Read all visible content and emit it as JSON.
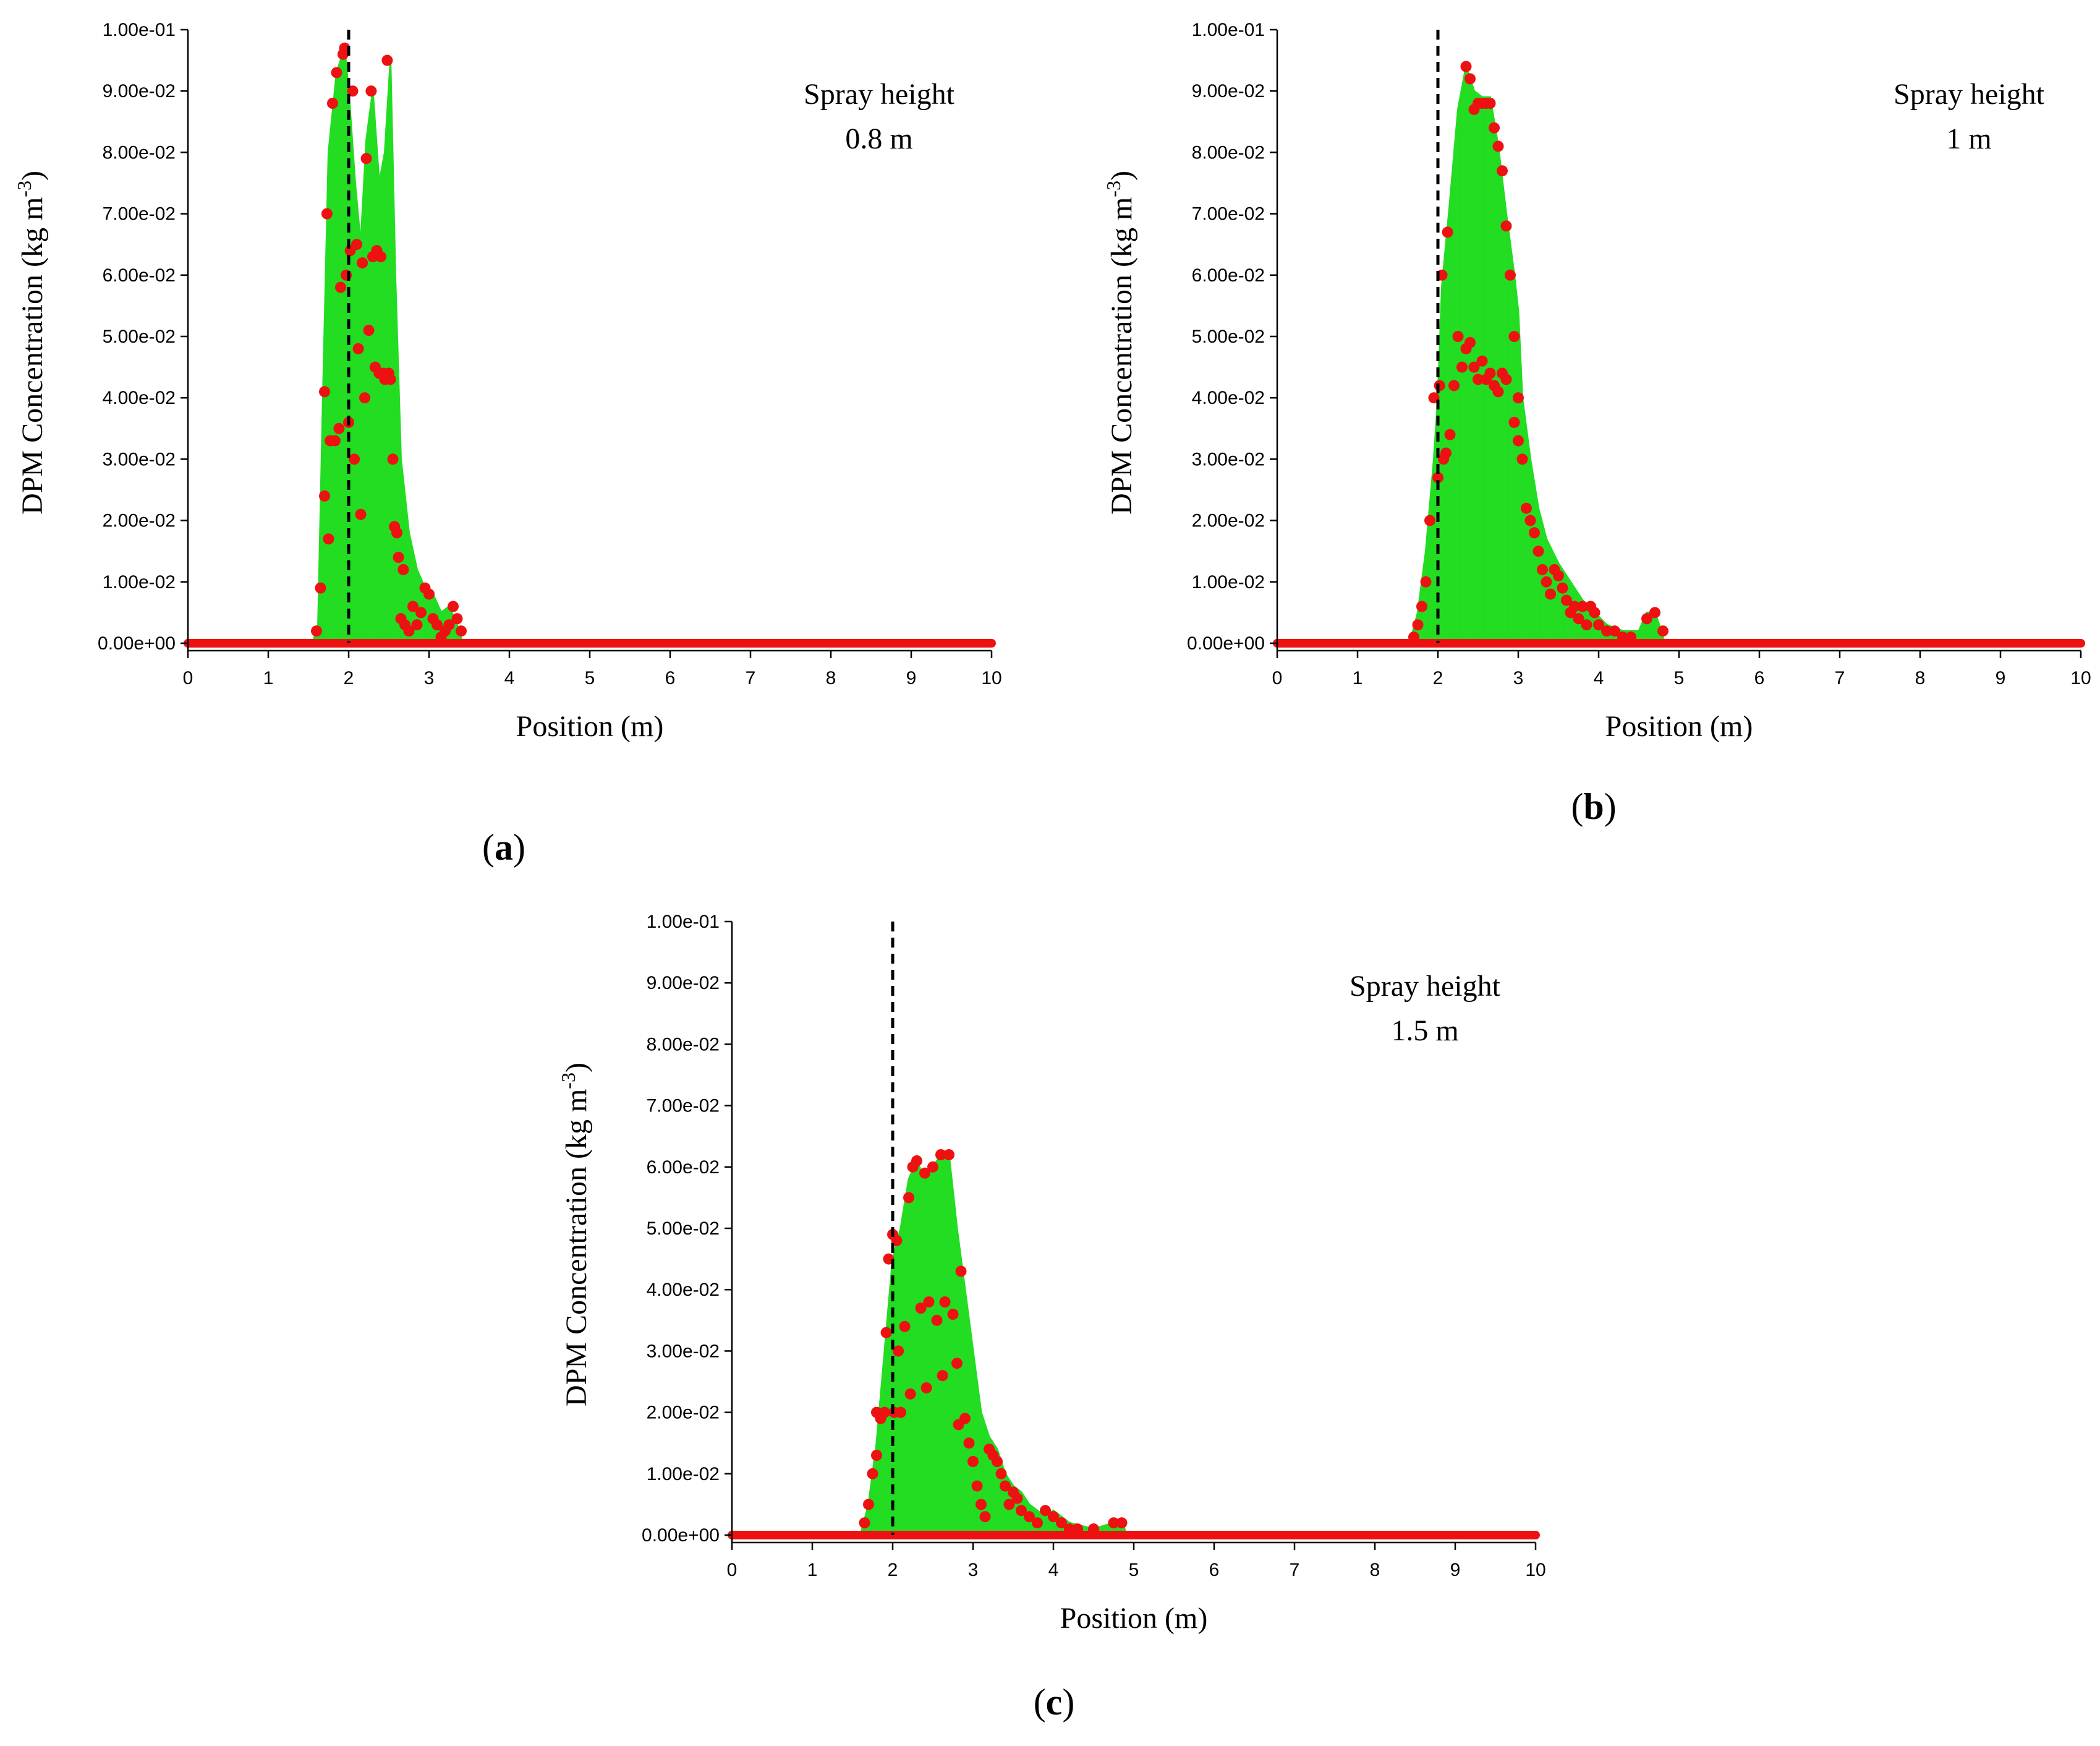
{
  "colors": {
    "fill": "#22dd22",
    "fill_light": "#a8f0a8",
    "point": "#ee1111",
    "axis": "#000000",
    "ref_line": "#000000"
  },
  "chart_data": [
    {
      "type": "area",
      "panel_label": "a",
      "xlabel": "Position (m)",
      "ylabel": "DPM Concentration (kg m",
      "ylabel_sup": "-3",
      "ylabel_end": ")",
      "annotation": [
        "Spray height",
        "0.8 m"
      ],
      "xlim": [
        0,
        10
      ],
      "ylim": [
        0,
        0.1
      ],
      "x_ticks": [
        "0",
        "1",
        "2",
        "3",
        "4",
        "5",
        "6",
        "7",
        "8",
        "9",
        "10"
      ],
      "y_ticks": [
        "0.00e+00",
        "1.00e-02",
        "2.00e-02",
        "3.00e-02",
        "4.00e-02",
        "5.00e-02",
        "6.00e-02",
        "7.00e-02",
        "8.00e-02",
        "9.00e-02",
        "1.00e-01"
      ],
      "reference_line_x": 2.0,
      "envelope": [
        [
          1.55,
          0
        ],
        [
          1.62,
          0.003
        ],
        [
          1.68,
          0.04
        ],
        [
          1.75,
          0.08
        ],
        [
          1.85,
          0.093
        ],
        [
          1.95,
          0.097
        ],
        [
          2.0,
          0.09
        ],
        [
          2.08,
          0.075
        ],
        [
          2.15,
          0.065
        ],
        [
          2.22,
          0.082
        ],
        [
          2.3,
          0.09
        ],
        [
          2.38,
          0.075
        ],
        [
          2.45,
          0.08
        ],
        [
          2.52,
          0.095
        ],
        [
          2.58,
          0.06
        ],
        [
          2.65,
          0.03
        ],
        [
          2.75,
          0.018
        ],
        [
          2.85,
          0.012
        ],
        [
          2.95,
          0.009
        ],
        [
          3.05,
          0.008
        ],
        [
          3.15,
          0.005
        ],
        [
          3.25,
          0.006
        ],
        [
          3.35,
          0.003
        ],
        [
          3.42,
          0
        ]
      ],
      "points": [
        [
          1.6,
          0.002
        ],
        [
          1.65,
          0.009
        ],
        [
          1.7,
          0.024
        ],
        [
          1.7,
          0.041
        ],
        [
          1.73,
          0.07
        ],
        [
          1.75,
          0.017
        ],
        [
          1.77,
          0.033
        ],
        [
          1.8,
          0.088
        ],
        [
          1.83,
          0.033
        ],
        [
          1.85,
          0.093
        ],
        [
          1.88,
          0.035
        ],
        [
          1.9,
          0.058
        ],
        [
          1.93,
          0.096
        ],
        [
          1.95,
          0.097
        ],
        [
          1.97,
          0.06
        ],
        [
          2.0,
          0.036
        ],
        [
          2.02,
          0.064
        ],
        [
          2.05,
          0.09
        ],
        [
          2.07,
          0.03
        ],
        [
          2.1,
          0.065
        ],
        [
          2.12,
          0.048
        ],
        [
          2.15,
          0.021
        ],
        [
          2.17,
          0.062
        ],
        [
          2.2,
          0.04
        ],
        [
          2.22,
          0.079
        ],
        [
          2.25,
          0.051
        ],
        [
          2.28,
          0.09
        ],
        [
          2.3,
          0.063
        ],
        [
          2.33,
          0.045
        ],
        [
          2.35,
          0.064
        ],
        [
          2.38,
          0.044
        ],
        [
          2.4,
          0.063
        ],
        [
          2.43,
          0.044
        ],
        [
          2.45,
          0.043
        ],
        [
          2.48,
          0.095
        ],
        [
          2.5,
          0.044
        ],
        [
          2.52,
          0.043
        ],
        [
          2.55,
          0.03
        ],
        [
          2.57,
          0.019
        ],
        [
          2.6,
          0.018
        ],
        [
          2.62,
          0.014
        ],
        [
          2.65,
          0.004
        ],
        [
          2.68,
          0.012
        ],
        [
          2.7,
          0.003
        ],
        [
          2.75,
          0.002
        ],
        [
          2.8,
          0.006
        ],
        [
          2.85,
          0.003
        ],
        [
          2.9,
          0.005
        ],
        [
          2.95,
          0.009
        ],
        [
          3.0,
          0.008
        ],
        [
          3.05,
          0.004
        ],
        [
          3.1,
          0.003
        ],
        [
          3.15,
          0.001
        ],
        [
          3.2,
          0.002
        ],
        [
          3.25,
          0.003
        ],
        [
          3.3,
          0.006
        ],
        [
          3.35,
          0.004
        ],
        [
          3.4,
          0.002
        ]
      ]
    },
    {
      "type": "area",
      "panel_label": "b",
      "xlabel": "Position (m)",
      "ylabel": "DPM Concentration (kg m",
      "ylabel_sup": "-3",
      "ylabel_end": ")",
      "annotation": [
        "Spray height",
        "1 m"
      ],
      "xlim": [
        0,
        10
      ],
      "ylim": [
        0,
        0.1
      ],
      "x_ticks": [
        "0",
        "1",
        "2",
        "3",
        "4",
        "5",
        "6",
        "7",
        "8",
        "9",
        "10"
      ],
      "y_ticks": [
        "0.00e+00",
        "1.00e-02",
        "2.00e-02",
        "3.00e-02",
        "4.00e-02",
        "5.00e-02",
        "6.00e-02",
        "7.00e-02",
        "8.00e-02",
        "9.00e-02",
        "1.00e-01"
      ],
      "reference_line_x": 2.0,
      "envelope": [
        [
          1.65,
          0
        ],
        [
          1.75,
          0.005
        ],
        [
          1.85,
          0.015
        ],
        [
          1.95,
          0.03
        ],
        [
          2.0,
          0.04
        ],
        [
          2.05,
          0.058
        ],
        [
          2.15,
          0.072
        ],
        [
          2.25,
          0.087
        ],
        [
          2.35,
          0.094
        ],
        [
          2.45,
          0.09
        ],
        [
          2.55,
          0.089
        ],
        [
          2.65,
          0.089
        ],
        [
          2.75,
          0.081
        ],
        [
          2.85,
          0.07
        ],
        [
          2.95,
          0.06
        ],
        [
          3.0,
          0.054
        ],
        [
          3.05,
          0.04
        ],
        [
          3.15,
          0.03
        ],
        [
          3.25,
          0.022
        ],
        [
          3.35,
          0.017
        ],
        [
          3.5,
          0.013
        ],
        [
          3.65,
          0.01
        ],
        [
          3.8,
          0.007
        ],
        [
          3.95,
          0.005
        ],
        [
          4.1,
          0.003
        ],
        [
          4.3,
          0.002
        ],
        [
          4.5,
          0.002
        ],
        [
          4.6,
          0.005
        ],
        [
          4.7,
          0.005
        ],
        [
          4.78,
          0.002
        ],
        [
          4.82,
          0
        ]
      ],
      "points": [
        [
          1.7,
          0.001
        ],
        [
          1.75,
          0.003
        ],
        [
          1.8,
          0.006
        ],
        [
          1.85,
          0.01
        ],
        [
          1.9,
          0.02
        ],
        [
          1.95,
          0.04
        ],
        [
          2.0,
          0.027
        ],
        [
          2.02,
          0.042
        ],
        [
          2.05,
          0.06
        ],
        [
          2.07,
          0.03
        ],
        [
          2.1,
          0.031
        ],
        [
          2.12,
          0.067
        ],
        [
          2.15,
          0.034
        ],
        [
          2.2,
          0.042
        ],
        [
          2.25,
          0.05
        ],
        [
          2.3,
          0.045
        ],
        [
          2.35,
          0.094
        ],
        [
          2.4,
          0.092
        ],
        [
          2.45,
          0.087
        ],
        [
          2.5,
          0.088
        ],
        [
          2.55,
          0.088
        ],
        [
          2.6,
          0.088
        ],
        [
          2.65,
          0.088
        ],
        [
          2.7,
          0.084
        ],
        [
          2.75,
          0.081
        ],
        [
          2.8,
          0.077
        ],
        [
          2.85,
          0.068
        ],
        [
          2.9,
          0.06
        ],
        [
          2.95,
          0.05
        ],
        [
          3.0,
          0.04
        ],
        [
          2.35,
          0.048
        ],
        [
          2.4,
          0.049
        ],
        [
          2.45,
          0.045
        ],
        [
          2.5,
          0.043
        ],
        [
          2.55,
          0.046
        ],
        [
          2.6,
          0.043
        ],
        [
          2.65,
          0.044
        ],
        [
          2.7,
          0.042
        ],
        [
          2.75,
          0.041
        ],
        [
          2.8,
          0.044
        ],
        [
          2.85,
          0.043
        ],
        [
          2.95,
          0.036
        ],
        [
          3.0,
          0.033
        ],
        [
          3.05,
          0.03
        ],
        [
          3.1,
          0.022
        ],
        [
          3.15,
          0.02
        ],
        [
          3.2,
          0.018
        ],
        [
          3.25,
          0.015
        ],
        [
          3.3,
          0.012
        ],
        [
          3.35,
          0.01
        ],
        [
          3.4,
          0.008
        ],
        [
          3.45,
          0.012
        ],
        [
          3.5,
          0.011
        ],
        [
          3.55,
          0.009
        ],
        [
          3.6,
          0.007
        ],
        [
          3.65,
          0.005
        ],
        [
          3.7,
          0.006
        ],
        [
          3.75,
          0.004
        ],
        [
          3.8,
          0.006
        ],
        [
          3.85,
          0.003
        ],
        [
          3.9,
          0.006
        ],
        [
          3.95,
          0.005
        ],
        [
          4.0,
          0.003
        ],
        [
          4.1,
          0.002
        ],
        [
          4.2,
          0.002
        ],
        [
          4.3,
          0.001
        ],
        [
          4.4,
          0.001
        ],
        [
          4.6,
          0.004
        ],
        [
          4.7,
          0.005
        ],
        [
          4.8,
          0.002
        ]
      ]
    },
    {
      "type": "area",
      "panel_label": "c",
      "xlabel": "Position (m)",
      "ylabel": "DPM Concentration (kg m",
      "ylabel_sup": "-3",
      "ylabel_end": ")",
      "annotation": [
        "Spray height",
        "1.5 m"
      ],
      "xlim": [
        0,
        10
      ],
      "ylim": [
        0,
        0.1
      ],
      "x_ticks": [
        "0",
        "1",
        "2",
        "3",
        "4",
        "5",
        "6",
        "7",
        "8",
        "9",
        "10"
      ],
      "y_ticks": [
        "0.00e+00",
        "1.00e-02",
        "2.00e-02",
        "3.00e-02",
        "4.00e-02",
        "5.00e-02",
        "6.00e-02",
        "7.00e-02",
        "8.00e-02",
        "9.00e-02",
        "1.00e-01"
      ],
      "reference_line_x": 2.0,
      "envelope": [
        [
          1.6,
          0
        ],
        [
          1.7,
          0.005
        ],
        [
          1.8,
          0.015
        ],
        [
          1.9,
          0.03
        ],
        [
          2.0,
          0.045
        ],
        [
          2.1,
          0.05
        ],
        [
          2.2,
          0.058
        ],
        [
          2.3,
          0.061
        ],
        [
          2.4,
          0.058
        ],
        [
          2.5,
          0.06
        ],
        [
          2.6,
          0.062
        ],
        [
          2.7,
          0.062
        ],
        [
          2.8,
          0.05
        ],
        [
          2.9,
          0.04
        ],
        [
          3.0,
          0.03
        ],
        [
          3.1,
          0.02
        ],
        [
          3.2,
          0.016
        ],
        [
          3.3,
          0.014
        ],
        [
          3.4,
          0.01
        ],
        [
          3.5,
          0.008
        ],
        [
          3.6,
          0.007
        ],
        [
          3.7,
          0.005
        ],
        [
          3.8,
          0.004
        ],
        [
          3.9,
          0.003
        ],
        [
          4.0,
          0.004
        ],
        [
          4.2,
          0.002
        ],
        [
          4.5,
          0.001
        ],
        [
          4.75,
          0.002
        ],
        [
          4.85,
          0.002
        ],
        [
          4.92,
          0
        ]
      ],
      "points": [
        [
          1.65,
          0.002
        ],
        [
          1.7,
          0.005
        ],
        [
          1.75,
          0.01
        ],
        [
          1.8,
          0.013
        ],
        [
          1.8,
          0.02
        ],
        [
          1.85,
          0.019
        ],
        [
          1.9,
          0.02
        ],
        [
          1.92,
          0.033
        ],
        [
          1.95,
          0.045
        ],
        [
          2.0,
          0.049
        ],
        [
          2.02,
          0.02
        ],
        [
          2.05,
          0.048
        ],
        [
          2.07,
          0.03
        ],
        [
          2.1,
          0.02
        ],
        [
          2.15,
          0.034
        ],
        [
          2.2,
          0.055
        ],
        [
          2.22,
          0.023
        ],
        [
          2.25,
          0.06
        ],
        [
          2.3,
          0.061
        ],
        [
          2.35,
          0.037
        ],
        [
          2.4,
          0.059
        ],
        [
          2.42,
          0.024
        ],
        [
          2.45,
          0.038
        ],
        [
          2.5,
          0.06
        ],
        [
          2.55,
          0.035
        ],
        [
          2.6,
          0.062
        ],
        [
          2.62,
          0.026
        ],
        [
          2.65,
          0.038
        ],
        [
          2.7,
          0.062
        ],
        [
          2.75,
          0.036
        ],
        [
          2.8,
          0.028
        ],
        [
          2.82,
          0.018
        ],
        [
          2.85,
          0.043
        ],
        [
          2.9,
          0.019
        ],
        [
          2.95,
          0.015
        ],
        [
          3.0,
          0.012
        ],
        [
          3.05,
          0.008
        ],
        [
          3.1,
          0.005
        ],
        [
          3.15,
          0.003
        ],
        [
          3.2,
          0.014
        ],
        [
          3.25,
          0.013
        ],
        [
          3.3,
          0.012
        ],
        [
          3.35,
          0.01
        ],
        [
          3.4,
          0.008
        ],
        [
          3.45,
          0.005
        ],
        [
          3.5,
          0.007
        ],
        [
          3.55,
          0.006
        ],
        [
          3.6,
          0.004
        ],
        [
          3.7,
          0.003
        ],
        [
          3.8,
          0.002
        ],
        [
          3.9,
          0.004
        ],
        [
          4.0,
          0.003
        ],
        [
          4.1,
          0.002
        ],
        [
          4.2,
          0.001
        ],
        [
          4.3,
          0.001
        ],
        [
          4.5,
          0.001
        ],
        [
          4.75,
          0.002
        ],
        [
          4.85,
          0.002
        ]
      ]
    }
  ]
}
